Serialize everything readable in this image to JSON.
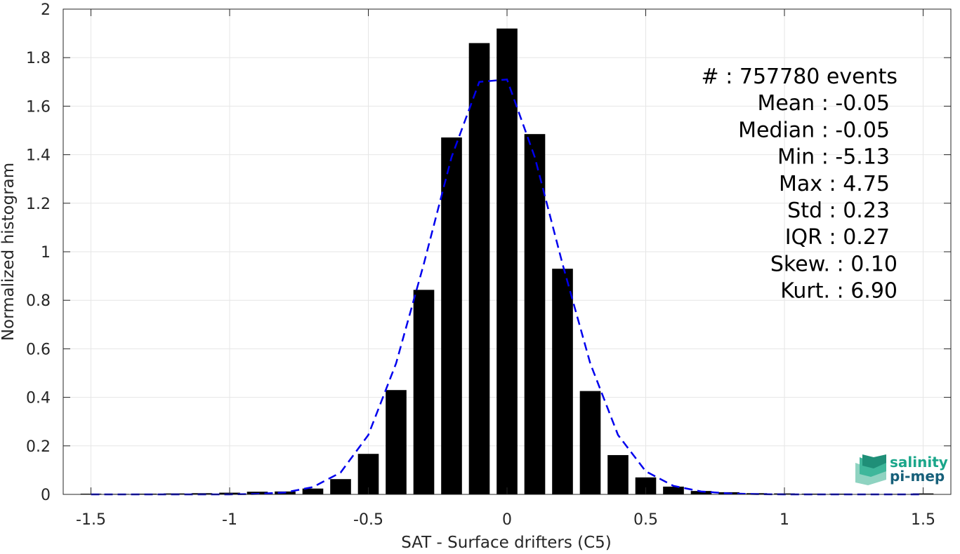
{
  "chart_data": {
    "type": "bar",
    "xlabel": "SAT - Surface drifters (C5)",
    "ylabel": "Normalized histogram",
    "xlim": [
      -1.6,
      1.6
    ],
    "ylim": [
      0,
      2
    ],
    "xticks": [
      -1.5,
      -1,
      -0.5,
      0,
      0.5,
      1,
      1.5
    ],
    "xtick_labels": [
      "-1.5",
      "-1",
      "-0.5",
      "0",
      "0.5",
      "1",
      "1.5"
    ],
    "yticks": [
      0,
      0.2,
      0.4,
      0.6,
      0.8,
      1,
      1.2,
      1.4,
      1.6,
      1.8,
      2
    ],
    "ytick_labels": [
      "0",
      "0.2",
      "0.4",
      "0.6",
      "0.8",
      "1",
      "1.2",
      "1.4",
      "1.6",
      "1.8",
      "2"
    ],
    "grid": true,
    "bar_width": 0.075,
    "bar_color": "#000000",
    "bars": {
      "x": [
        -1.5,
        -1.4,
        -1.3,
        -1.2,
        -1.1,
        -1.0,
        -0.9,
        -0.8,
        -0.7,
        -0.6,
        -0.5,
        -0.4,
        -0.3,
        -0.2,
        -0.1,
        0.0,
        0.1,
        0.2,
        0.3,
        0.4,
        0.5,
        0.6,
        0.7,
        0.8,
        0.9,
        1.0,
        1.1,
        1.2,
        1.3,
        1.4,
        1.5
      ],
      "values": [
        0.003,
        0.002,
        0.003,
        0.004,
        0.005,
        0.007,
        0.011,
        0.012,
        0.024,
        0.063,
        0.167,
        0.43,
        0.843,
        1.471,
        1.86,
        1.92,
        1.485,
        0.93,
        0.426,
        0.162,
        0.07,
        0.032,
        0.014,
        0.009,
        0.005,
        0.004,
        0.003,
        0.003,
        0.002,
        0.002,
        0.004
      ]
    },
    "fit_curve": {
      "style": "dashed",
      "color": "#0000ee",
      "x": [
        -1.5,
        -1.4,
        -1.3,
        -1.2,
        -1.1,
        -1.0,
        -0.9,
        -0.8,
        -0.7,
        -0.6,
        -0.5,
        -0.4,
        -0.3,
        -0.2,
        -0.1,
        0.0,
        0.1,
        0.2,
        0.3,
        0.4,
        0.5,
        0.6,
        0.7,
        0.8,
        0.9,
        1.0,
        1.1,
        1.2,
        1.3,
        1.4,
        1.5
      ],
      "values": [
        0.0,
        0.0,
        0.0,
        0.0,
        0.0,
        0.0,
        0.002,
        0.008,
        0.03,
        0.09,
        0.245,
        0.54,
        0.95,
        1.39,
        1.7,
        1.71,
        1.39,
        0.95,
        0.54,
        0.245,
        0.095,
        0.035,
        0.012,
        0.004,
        0.001,
        0.0,
        0.0,
        0.0,
        0.0,
        0.0,
        0.0
      ]
    },
    "stats": [
      "#  : 757780 events",
      "Mean : -0.05",
      "Median : -0.05",
      "Min : -5.13",
      "Max : 4.75",
      "Std : 0.23",
      "IQR : 0.27",
      "Skew. : 0.10",
      "Kurt. : 6.90"
    ]
  },
  "logo": {
    "line1": "salinity",
    "line2": "pi-mep",
    "color1": "#1aa68a",
    "color2": "#17607a"
  }
}
